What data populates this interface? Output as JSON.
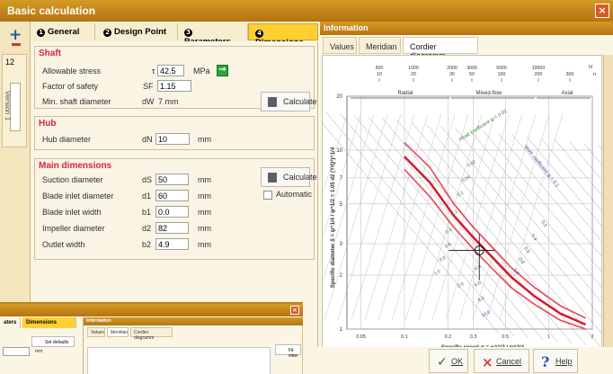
{
  "window": {
    "title": "Basic calculation"
  },
  "tree": {
    "top": "12",
    "tab": "Version 1"
  },
  "tabs": [
    {
      "num": "1",
      "label": "General"
    },
    {
      "num": "2",
      "label": "Design Point"
    },
    {
      "num": "3",
      "label": "Parameters"
    },
    {
      "num": "4",
      "label": "Dimensions"
    }
  ],
  "sections": {
    "shaft": {
      "title": "Shaft",
      "allowable_stress": {
        "label": "Allowable stress",
        "symbol": "τ",
        "value": "42.5",
        "unit": "MPa"
      },
      "factor_safety": {
        "label": "Factor of safety",
        "symbol": "SF",
        "value": "1.15"
      },
      "min_shaft": {
        "label": "Min. shaft diameter",
        "symbol": "dW",
        "value": "7 mm"
      },
      "calculate": "Calculate"
    },
    "hub": {
      "title": "Hub",
      "diameter": {
        "label": "Hub diameter",
        "symbol": "dN",
        "value": "10",
        "unit": "mm"
      }
    },
    "main": {
      "title": "Main dimensions",
      "calculate": "Calculate",
      "automatic": "Automatic",
      "rows": [
        {
          "label": "Suction diameter",
          "symbol": "dS",
          "value": "50",
          "unit": "mm"
        },
        {
          "label": "Blade inlet diameter",
          "symbol": "d1",
          "value": "60",
          "unit": "mm"
        },
        {
          "label": "Blade inlet width",
          "symbol": "b1",
          "value": "0.0",
          "unit": "mm"
        },
        {
          "label": "Impeller diameter",
          "symbol": "d2",
          "value": "82",
          "unit": "mm"
        },
        {
          "label": "Outlet width",
          "symbol": "b2",
          "value": "4.9",
          "unit": "mm"
        }
      ]
    }
  },
  "information": {
    "title": "Information",
    "tabs": [
      "Values",
      "Meridian",
      "Cordier diagramm"
    ],
    "active_tab": "Cordier diagramm"
  },
  "chart_data": {
    "type": "line",
    "title": "",
    "xlabel": "Specific speed σ = φ^1/2 / ψ^3/4",
    "ylabel": "Specific diameter δ = ψ^1/4 / φ^1/2 = 1.05 d2 (Y/Q²)^1/4",
    "x_range": [
      0.04,
      2.0
    ],
    "y_range": [
      1,
      20
    ],
    "x_scale": "log",
    "y_scale": "log",
    "x_ticks": [
      "0.05",
      "0.1",
      "0.2",
      "0.3",
      "0.5",
      "1",
      "2"
    ],
    "y_ticks": [
      "1",
      "2",
      "3",
      "5",
      "7",
      "10",
      "20"
    ],
    "top_ticks": [
      {
        "upper": "500",
        "lower": "10"
      },
      {
        "upper": "1000",
        "lower": "20"
      },
      {
        "upper": "2000",
        "lower": "30"
      },
      {
        "upper": "3000",
        "lower": "50"
      },
      {
        "upper": "5000",
        "lower": "100"
      },
      {
        "upper": "10000",
        "lower": "200"
      },
      {
        "upper": "",
        "lower": "300"
      }
    ],
    "top_labels": [
      "N",
      "n"
    ],
    "regions": [
      "Radial",
      "Mixed-flow",
      "Axial"
    ],
    "annotations": [
      "Head coefficient ψ = 0.01",
      "Work coefficient ψ = 0.1",
      "0.02",
      "0.04",
      "0.1",
      "0.2",
      "0.4",
      "0.6",
      "0.8",
      "1.0",
      "2.0",
      "4.0",
      "6.0",
      "8.0",
      "10.0",
      "0.2",
      "0.4",
      "0.6",
      "0.8",
      "1.0"
    ],
    "series": [
      {
        "x": [
          0.1,
          0.15,
          0.22,
          0.3,
          0.4,
          0.55,
          0.8,
          1.2,
          1.8
        ],
        "y": [
          11.0,
          8.0,
          5.0,
          3.7,
          2.9,
          2.2,
          1.7,
          1.35,
          1.15
        ]
      },
      {
        "x": [
          0.1,
          0.15,
          0.22,
          0.3,
          0.4,
          0.55,
          0.8,
          1.2,
          1.8
        ],
        "y": [
          9.2,
          6.6,
          4.3,
          3.25,
          2.55,
          1.95,
          1.52,
          1.22,
          1.06
        ]
      },
      {
        "x": [
          0.1,
          0.15,
          0.22,
          0.3,
          0.4,
          0.55,
          0.8,
          1.2,
          1.8
        ],
        "y": [
          7.8,
          5.5,
          3.7,
          2.8,
          2.2,
          1.7,
          1.37,
          1.12,
          1.0
        ]
      }
    ],
    "operating_point": {
      "x": 0.33,
      "y": 2.75
    }
  },
  "buttons": {
    "ok": "OK",
    "cancel": "Cancel",
    "help": "Help"
  },
  "thumbnail": {
    "tabs": [
      "aters",
      "Dimensions"
    ],
    "info_title": "Information",
    "info_tabs": [
      "Values",
      "Meridian",
      "Cordier diagramm"
    ],
    "active_tab": "Meridian",
    "buttons": [
      "Set defaults",
      "Fit view"
    ],
    "field_unit": "mm"
  }
}
